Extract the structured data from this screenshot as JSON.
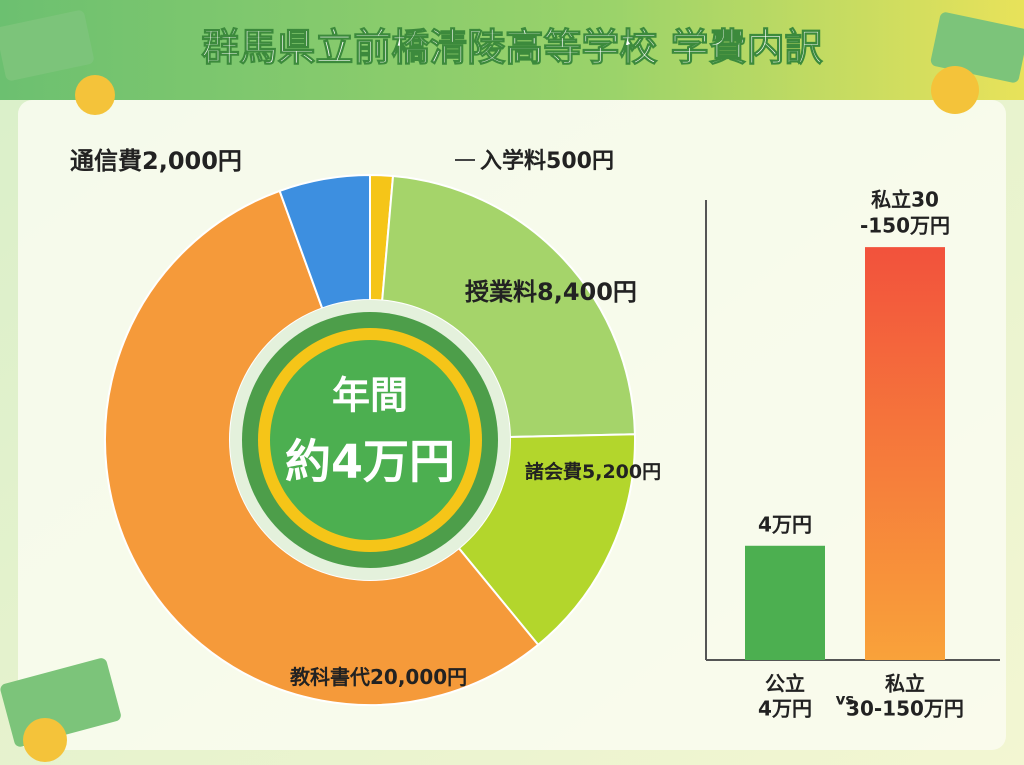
{
  "title": "群馬県立前橋清陵高等学校 学費内訳",
  "chart_data": [
    {
      "type": "donut",
      "categories": [
        "入学料",
        "授業料",
        "諸会費",
        "教科書代",
        "通信費"
      ],
      "values": [
        500,
        8400,
        5200,
        20000,
        2000
      ],
      "value_labels": [
        "500円",
        "8,400円",
        "5,200円",
        "20,000円",
        "2,000円"
      ],
      "colors": [
        "#f5c518",
        "#a5d46a",
        "#b3d62c",
        "#f59a3a",
        "#3d8fe0"
      ],
      "annotations": [
        "年間",
        "約4万円"
      ]
    },
    {
      "type": "bar",
      "categories": [
        "公立",
        "私立"
      ],
      "category_values": [
        "4万円",
        "30-150万円"
      ],
      "values": [
        4,
        150
      ],
      "value_labels": [
        [
          "4万円"
        ],
        [
          "私立30",
          "-150万円"
        ]
      ],
      "colors": [
        "#4caf50",
        "#f2523c"
      ],
      "log": true,
      "ylim": [
        1,
        300
      ],
      "annotation": "vs"
    }
  ]
}
